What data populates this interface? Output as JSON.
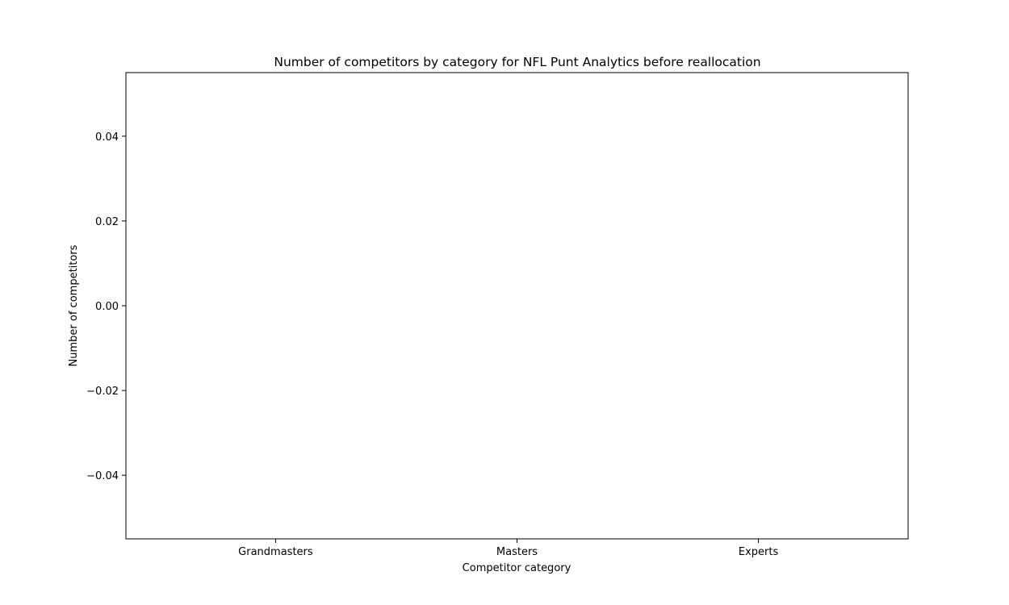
{
  "chart_data": {
    "type": "bar",
    "title": "Number of competitors by category for NFL Punt Analytics before reallocation",
    "xlabel": "Competitor category",
    "ylabel": "Number of competitors",
    "categories": [
      "Grandmasters",
      "Masters",
      "Experts"
    ],
    "values": [
      0,
      0,
      0
    ],
    "ylim": [
      -0.055,
      0.055
    ],
    "yticks": [
      {
        "value": -0.04,
        "label": "−0.04"
      },
      {
        "value": -0.02,
        "label": "−0.02"
      },
      {
        "value": 0.0,
        "label": "0.00"
      },
      {
        "value": 0.02,
        "label": "0.02"
      },
      {
        "value": 0.04,
        "label": "0.04"
      }
    ],
    "grid": false,
    "legend": "none",
    "colors": {
      "axis": "#000000",
      "bar": "#1f77b4",
      "background": "#ffffff"
    }
  }
}
